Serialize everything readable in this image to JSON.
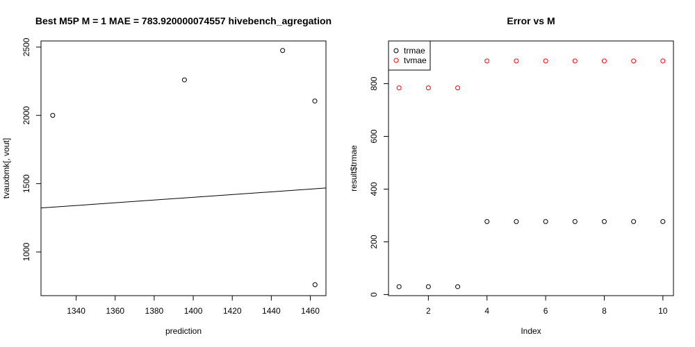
{
  "chart_data": [
    {
      "type": "scatter",
      "title": "Best M5P M = 1 MAE = 783.920000074557 hivebench_agregation",
      "xlabel": "prediction",
      "ylabel": "tvauxbmk[, vout]",
      "xlim": [
        1322,
        1468
      ],
      "ylim": [
        680,
        2545
      ],
      "xticks": [
        1340,
        1360,
        1380,
        1400,
        1420,
        1440,
        1460
      ],
      "yticks": [
        1000,
        1500,
        2000,
        2500
      ],
      "points": [
        {
          "x": 1328,
          "y": 2000
        },
        {
          "x": 1395.5,
          "y": 2260
        },
        {
          "x": 1445.8,
          "y": 2475
        },
        {
          "x": 1462.3,
          "y": 2105
        },
        {
          "x": 1462.4,
          "y": 760
        }
      ],
      "line": {
        "intercept": 0,
        "slope": 1
      },
      "point_color": "#000000",
      "grid": false
    },
    {
      "type": "scatter",
      "title": "Error vs M",
      "xlabel": "Index",
      "ylabel": "result$trmae",
      "xlim": [
        0.64,
        10.36
      ],
      "ylim": [
        -4,
        962
      ],
      "xticks": [
        2,
        4,
        6,
        8,
        10
      ],
      "yticks": [
        0,
        200,
        400,
        600,
        800
      ],
      "series": [
        {
          "name": "trmae",
          "color": "#000000",
          "x": [
            1,
            2,
            3,
            4,
            5,
            6,
            7,
            8,
            9,
            10
          ],
          "y": [
            30,
            30,
            30,
            277,
            277,
            277,
            277,
            277,
            277,
            277
          ]
        },
        {
          "name": "tvmae",
          "color": "#ff0000",
          "x": [
            1,
            2,
            3,
            4,
            5,
            6,
            7,
            8,
            9,
            10
          ],
          "y": [
            784,
            784,
            784,
            886,
            886,
            886,
            886,
            886,
            886,
            886
          ]
        }
      ],
      "legend": "top-left",
      "grid": false
    }
  ]
}
